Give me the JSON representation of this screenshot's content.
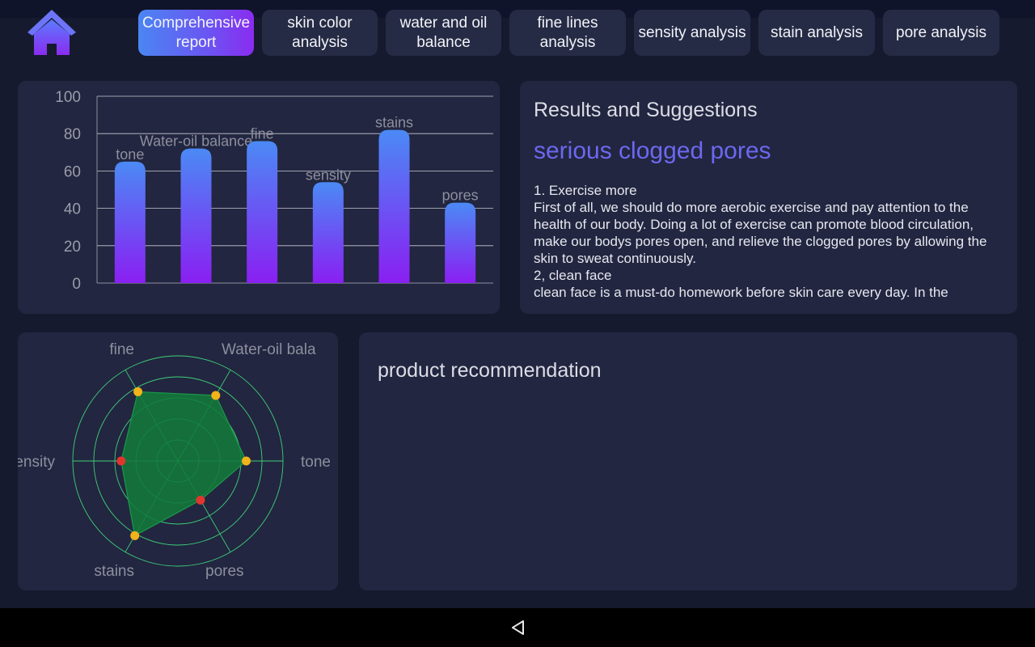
{
  "tabs": [
    {
      "label": "Comprehensive report",
      "active": true
    },
    {
      "label": "skin color analysis",
      "active": false
    },
    {
      "label": "water and oil balance",
      "active": false
    },
    {
      "label": "fine lines analysis",
      "active": false
    },
    {
      "label": "sensity analysis",
      "active": false
    },
    {
      "label": "stain analysis",
      "active": false
    },
    {
      "label": "pore analysis",
      "active": false
    }
  ],
  "icons": {
    "home": "home-icon",
    "back": "back-triangle-icon"
  },
  "colors": {
    "accent": "#6c68f0",
    "bar_top": "#4b8af5",
    "bar_bottom": "#8a1ff2",
    "radar_fill": "#127a3a",
    "radar_grid": "#3fcf7a"
  },
  "chart_data": [
    {
      "type": "bar",
      "categories": [
        "tone",
        "Water-oil balance",
        "fine",
        "sensity",
        "stains",
        "pores"
      ],
      "values": [
        65,
        72,
        76,
        54,
        82,
        43
      ],
      "yticks": [
        0,
        20,
        40,
        60,
        80,
        100
      ],
      "ylim": [
        0,
        100
      ],
      "grid": true
    },
    {
      "type": "radar",
      "categories": [
        "tone",
        "Water-oil bala",
        "fine",
        "sensity",
        "stains",
        "pores"
      ],
      "values": [
        65,
        72,
        76,
        54,
        82,
        43
      ],
      "rmax": 100
    }
  ],
  "results": {
    "title": "Results and Suggestions",
    "headline": "serious clogged pores",
    "body": "1. Exercise more\nFirst of all, we should do more aerobic exercise and pay attention to the health of our body. Doing a lot of exercise can promote blood circulation, make our bodys pores open, and relieve the clogged pores by allowing the skin to sweat continuously.\n2, clean face\n clean face is a must-do homework before skin care every day. In the"
  },
  "product": {
    "title": "product recommendation"
  }
}
